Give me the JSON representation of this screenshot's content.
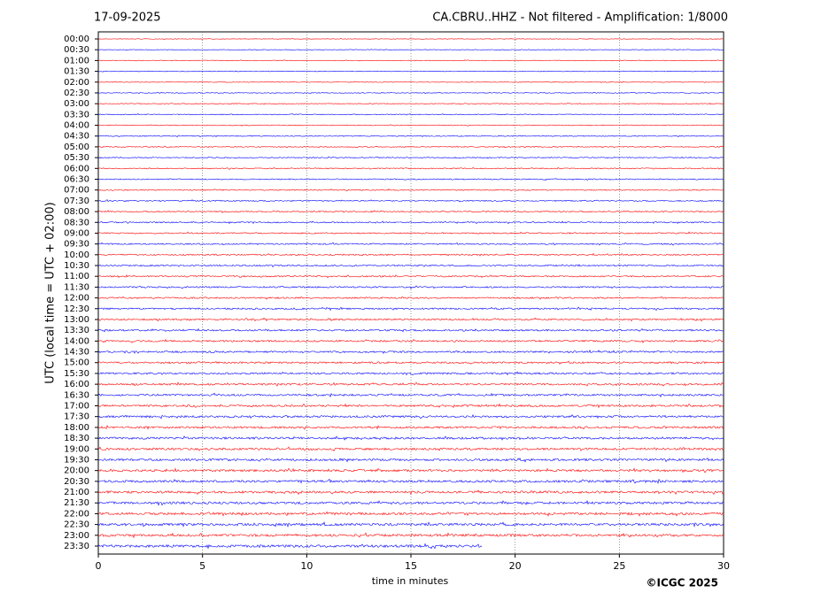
{
  "chart_data": {
    "type": "helicorder",
    "title": "CA.CBRU..HHZ - Not filtered - Amplification: 1/8000",
    "date": "17-09-2025",
    "x_label": "time in minutes",
    "y_label": "UTC (local time = UTC + 02:00)",
    "credit": "©ICGC 2025",
    "categories": [
      "00:00",
      "00:30",
      "01:00",
      "01:30",
      "02:00",
      "02:30",
      "03:00",
      "03:30",
      "04:00",
      "04:30",
      "05:00",
      "05:30",
      "06:00",
      "06:30",
      "07:00",
      "07:30",
      "08:00",
      "08:30",
      "09:00",
      "09:30",
      "10:00",
      "10:30",
      "11:00",
      "11:30",
      "12:00",
      "12:30",
      "13:00",
      "13:30",
      "14:00",
      "14:30",
      "15:00",
      "15:30",
      "16:00",
      "16:30",
      "17:00",
      "17:30",
      "18:00",
      "18:30",
      "19:00",
      "19:30",
      "20:00",
      "20:30",
      "21:00",
      "21:30",
      "22:00",
      "22:30",
      "23:00",
      "23:30"
    ],
    "values": [
      30,
      30,
      30,
      30,
      30,
      30,
      30,
      30,
      30,
      30,
      30,
      30,
      30,
      30,
      30,
      30,
      30,
      30,
      30,
      30,
      30,
      30,
      30,
      30,
      30,
      30,
      30,
      30,
      30,
      30,
      30,
      30,
      30,
      30,
      30,
      30,
      30,
      30,
      30,
      30,
      30,
      30,
      30,
      30,
      30,
      30,
      30,
      18.4
    ],
    "colors": [
      "#ff0000",
      "#0000ff"
    ],
    "xlim": [
      0,
      30
    ],
    "xticks": [
      0,
      5,
      10,
      15,
      20,
      25,
      30
    ],
    "grid": true
  }
}
